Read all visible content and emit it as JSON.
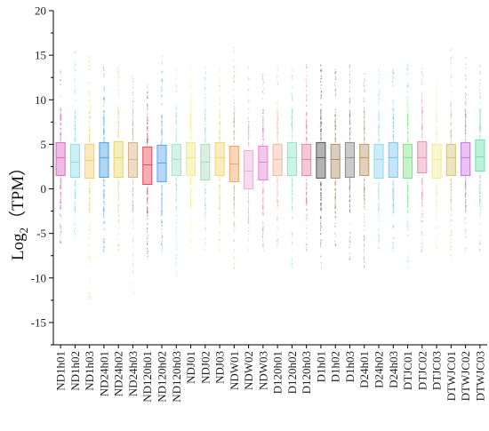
{
  "chart_data": {
    "type": "box",
    "title": "",
    "xlabel": "",
    "ylabel": {
      "base": "Log",
      "subscript": "2",
      "unit": "（TPM）"
    },
    "ylim": [
      -17.5,
      20
    ],
    "yticks": [
      -15,
      -10,
      -5,
      0,
      5,
      10,
      15,
      20
    ],
    "grid": false,
    "legend": "none",
    "categories": [
      "ND1h01",
      "ND1h02",
      "ND1h03",
      "ND24h01",
      "ND24h02",
      "ND24h03",
      "ND120h01",
      "ND120h02",
      "ND120h03",
      "NDJ01",
      "NDJ02",
      "NDJ03",
      "NDW01",
      "NDW02",
      "NDW03",
      "D120h01",
      "D120h02",
      "D120h03",
      "D1h01",
      "D1h02",
      "D1h03",
      "D24h01",
      "D24h02",
      "D24h03",
      "DTJC01",
      "DTJC02",
      "DTJC03",
      "DTWJC01",
      "DTWJC02",
      "DTWJC03"
    ],
    "colors": [
      "#e066c2",
      "#86e0ef",
      "#f2d06e",
      "#4ea0e6",
      "#e6d66c",
      "#d6b08a",
      "#e84c5c",
      "#5aa6ee",
      "#9ee4c8",
      "#f4ea7c",
      "#a8dcc4",
      "#f4d472",
      "#f0a468",
      "#e8b2d6",
      "#e482d2",
      "#f2b8a0",
      "#8ee6c8",
      "#ee82a8",
      "#555555",
      "#a89070",
      "#8a8a8a",
      "#b89a6a",
      "#8ed8f0",
      "#7ac6ee",
      "#7ae886",
      "#ea90b2",
      "#f4ea96",
      "#d4c27a",
      "#c77ade",
      "#6ee0b0"
    ],
    "series": [
      {
        "name": "ND1h01",
        "q1": 1.5,
        "median": 3.5,
        "q3": 5.2,
        "whisker_low": -6,
        "whisker_high": 13.5
      },
      {
        "name": "ND1h02",
        "q1": 1.3,
        "median": 3.0,
        "q3": 5.0,
        "whisker_low": -6,
        "whisker_high": 16
      },
      {
        "name": "ND1h03",
        "q1": 1.2,
        "median": 3.2,
        "q3": 5.0,
        "whisker_low": -13,
        "whisker_high": 15
      },
      {
        "name": "ND24h01",
        "q1": 1.3,
        "median": 3.5,
        "q3": 5.2,
        "whisker_low": -7,
        "whisker_high": 14
      },
      {
        "name": "ND24h02",
        "q1": 1.3,
        "median": 3.5,
        "q3": 5.3,
        "whisker_low": -7,
        "whisker_high": 14
      },
      {
        "name": "ND24h03",
        "q1": 1.3,
        "median": 3.3,
        "q3": 5.2,
        "whisker_low": -12,
        "whisker_high": 13
      },
      {
        "name": "ND120h01",
        "q1": 0.5,
        "median": 2.7,
        "q3": 4.7,
        "whisker_low": -8,
        "whisker_high": 12
      },
      {
        "name": "ND120h02",
        "q1": 0.8,
        "median": 2.9,
        "q3": 4.9,
        "whisker_low": -7,
        "whisker_high": 15
      },
      {
        "name": "ND120h03",
        "q1": 1.5,
        "median": 3.3,
        "q3": 5.0,
        "whisker_low": -10,
        "whisker_high": 14
      },
      {
        "name": "NDJ01",
        "q1": 1.5,
        "median": 3.5,
        "q3": 5.2,
        "whisker_low": -7,
        "whisker_high": 14
      },
      {
        "name": "NDJ02",
        "q1": 1.0,
        "median": 3.0,
        "q3": 5.0,
        "whisker_low": -7,
        "whisker_high": 14
      },
      {
        "name": "NDJ03",
        "q1": 1.5,
        "median": 3.5,
        "q3": 5.2,
        "whisker_low": -7,
        "whisker_high": 14
      },
      {
        "name": "NDW01",
        "q1": 0.8,
        "median": 2.8,
        "q3": 4.8,
        "whisker_low": -9,
        "whisker_high": 16
      },
      {
        "name": "NDW02",
        "q1": 0.0,
        "median": 2.0,
        "q3": 4.3,
        "whisker_low": -7,
        "whisker_high": 14
      },
      {
        "name": "NDW03",
        "q1": 1.0,
        "median": 3.0,
        "q3": 4.8,
        "whisker_low": -7,
        "whisker_high": 13
      },
      {
        "name": "D120h01",
        "q1": 1.5,
        "median": 3.3,
        "q3": 5.0,
        "whisker_low": -7,
        "whisker_high": 14
      },
      {
        "name": "D120h02",
        "q1": 1.5,
        "median": 3.5,
        "q3": 5.2,
        "whisker_low": -9,
        "whisker_high": 14
      },
      {
        "name": "D120h03",
        "q1": 1.5,
        "median": 3.3,
        "q3": 5.0,
        "whisker_low": -7,
        "whisker_high": 14
      },
      {
        "name": "D1h01",
        "q1": 1.2,
        "median": 3.5,
        "q3": 5.2,
        "whisker_low": -9,
        "whisker_high": 14
      },
      {
        "name": "D1h02",
        "q1": 1.2,
        "median": 3.3,
        "q3": 5.0,
        "whisker_low": -7,
        "whisker_high": 14
      },
      {
        "name": "D1h03",
        "q1": 1.3,
        "median": 3.5,
        "q3": 5.2,
        "whisker_low": -8,
        "whisker_high": 14
      },
      {
        "name": "D24h01",
        "q1": 1.5,
        "median": 3.5,
        "q3": 5.0,
        "whisker_low": -10,
        "whisker_high": 13
      },
      {
        "name": "D24h02",
        "q1": 1.2,
        "median": 3.3,
        "q3": 5.0,
        "whisker_low": -7,
        "whisker_high": 14
      },
      {
        "name": "D24h03",
        "q1": 1.3,
        "median": 3.5,
        "q3": 5.2,
        "whisker_low": -7,
        "whisker_high": 14
      },
      {
        "name": "DTJC01",
        "q1": 1.2,
        "median": 3.5,
        "q3": 5.0,
        "whisker_low": -9,
        "whisker_high": 15
      },
      {
        "name": "DTJC02",
        "q1": 1.8,
        "median": 3.5,
        "q3": 5.3,
        "whisker_low": -7,
        "whisker_high": 14
      },
      {
        "name": "DTJC03",
        "q1": 1.2,
        "median": 3.3,
        "q3": 5.0,
        "whisker_low": -7,
        "whisker_high": 14
      },
      {
        "name": "DTWJC01",
        "q1": 1.5,
        "median": 3.5,
        "q3": 5.0,
        "whisker_low": -8,
        "whisker_high": 16
      },
      {
        "name": "DTWJC02",
        "q1": 1.5,
        "median": 3.5,
        "q3": 5.2,
        "whisker_low": -7,
        "whisker_high": 15
      },
      {
        "name": "DTWJC03",
        "q1": 2.0,
        "median": 3.6,
        "q3": 5.5,
        "whisker_low": -7,
        "whisker_high": 14
      }
    ]
  }
}
